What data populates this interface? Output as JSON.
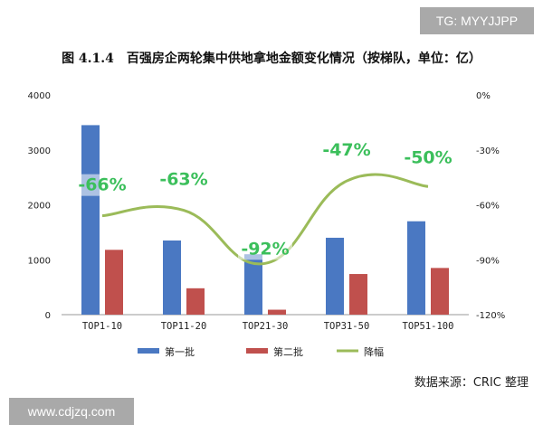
{
  "watermark_top": "TG: MYYJJPP",
  "watermark_bottom": "www.cdjzq.com",
  "source_note": "数据来源：CRIC 整理",
  "chart_data": {
    "type": "bar",
    "title": "图 4.1.4　百强房企两轮集中供地拿地金额变化情况（按梯队，单位：亿）",
    "categories": [
      "TOP1-10",
      "TOP11-20",
      "TOP21-30",
      "TOP31-50",
      "TOP51-100"
    ],
    "series": [
      {
        "name": "第一批",
        "kind": "bar",
        "axis": "left",
        "color": "#4a78c2",
        "values": [
          3450,
          1350,
          1100,
          1400,
          1700
        ]
      },
      {
        "name": "第二批",
        "kind": "bar",
        "axis": "left",
        "color": "#c0504d",
        "values": [
          1180,
          480,
          90,
          740,
          850
        ]
      },
      {
        "name": "降幅",
        "kind": "line",
        "axis": "right",
        "color": "#9bbb59",
        "values": [
          -66,
          -63,
          -92,
          -47,
          -50
        ],
        "labels": [
          "-66%",
          "-63%",
          "-92%",
          "-47%",
          "-50%"
        ]
      }
    ],
    "y_left": {
      "min": 0,
      "max": 4000,
      "ticks": [
        "0",
        "1000",
        "2000",
        "3000",
        "4000"
      ]
    },
    "y_right": {
      "min": -120,
      "max": 0,
      "ticks": [
        "0%",
        "-30%",
        "-60%",
        "-90%",
        "-120%"
      ]
    },
    "grid": false,
    "legend": "bottom"
  }
}
